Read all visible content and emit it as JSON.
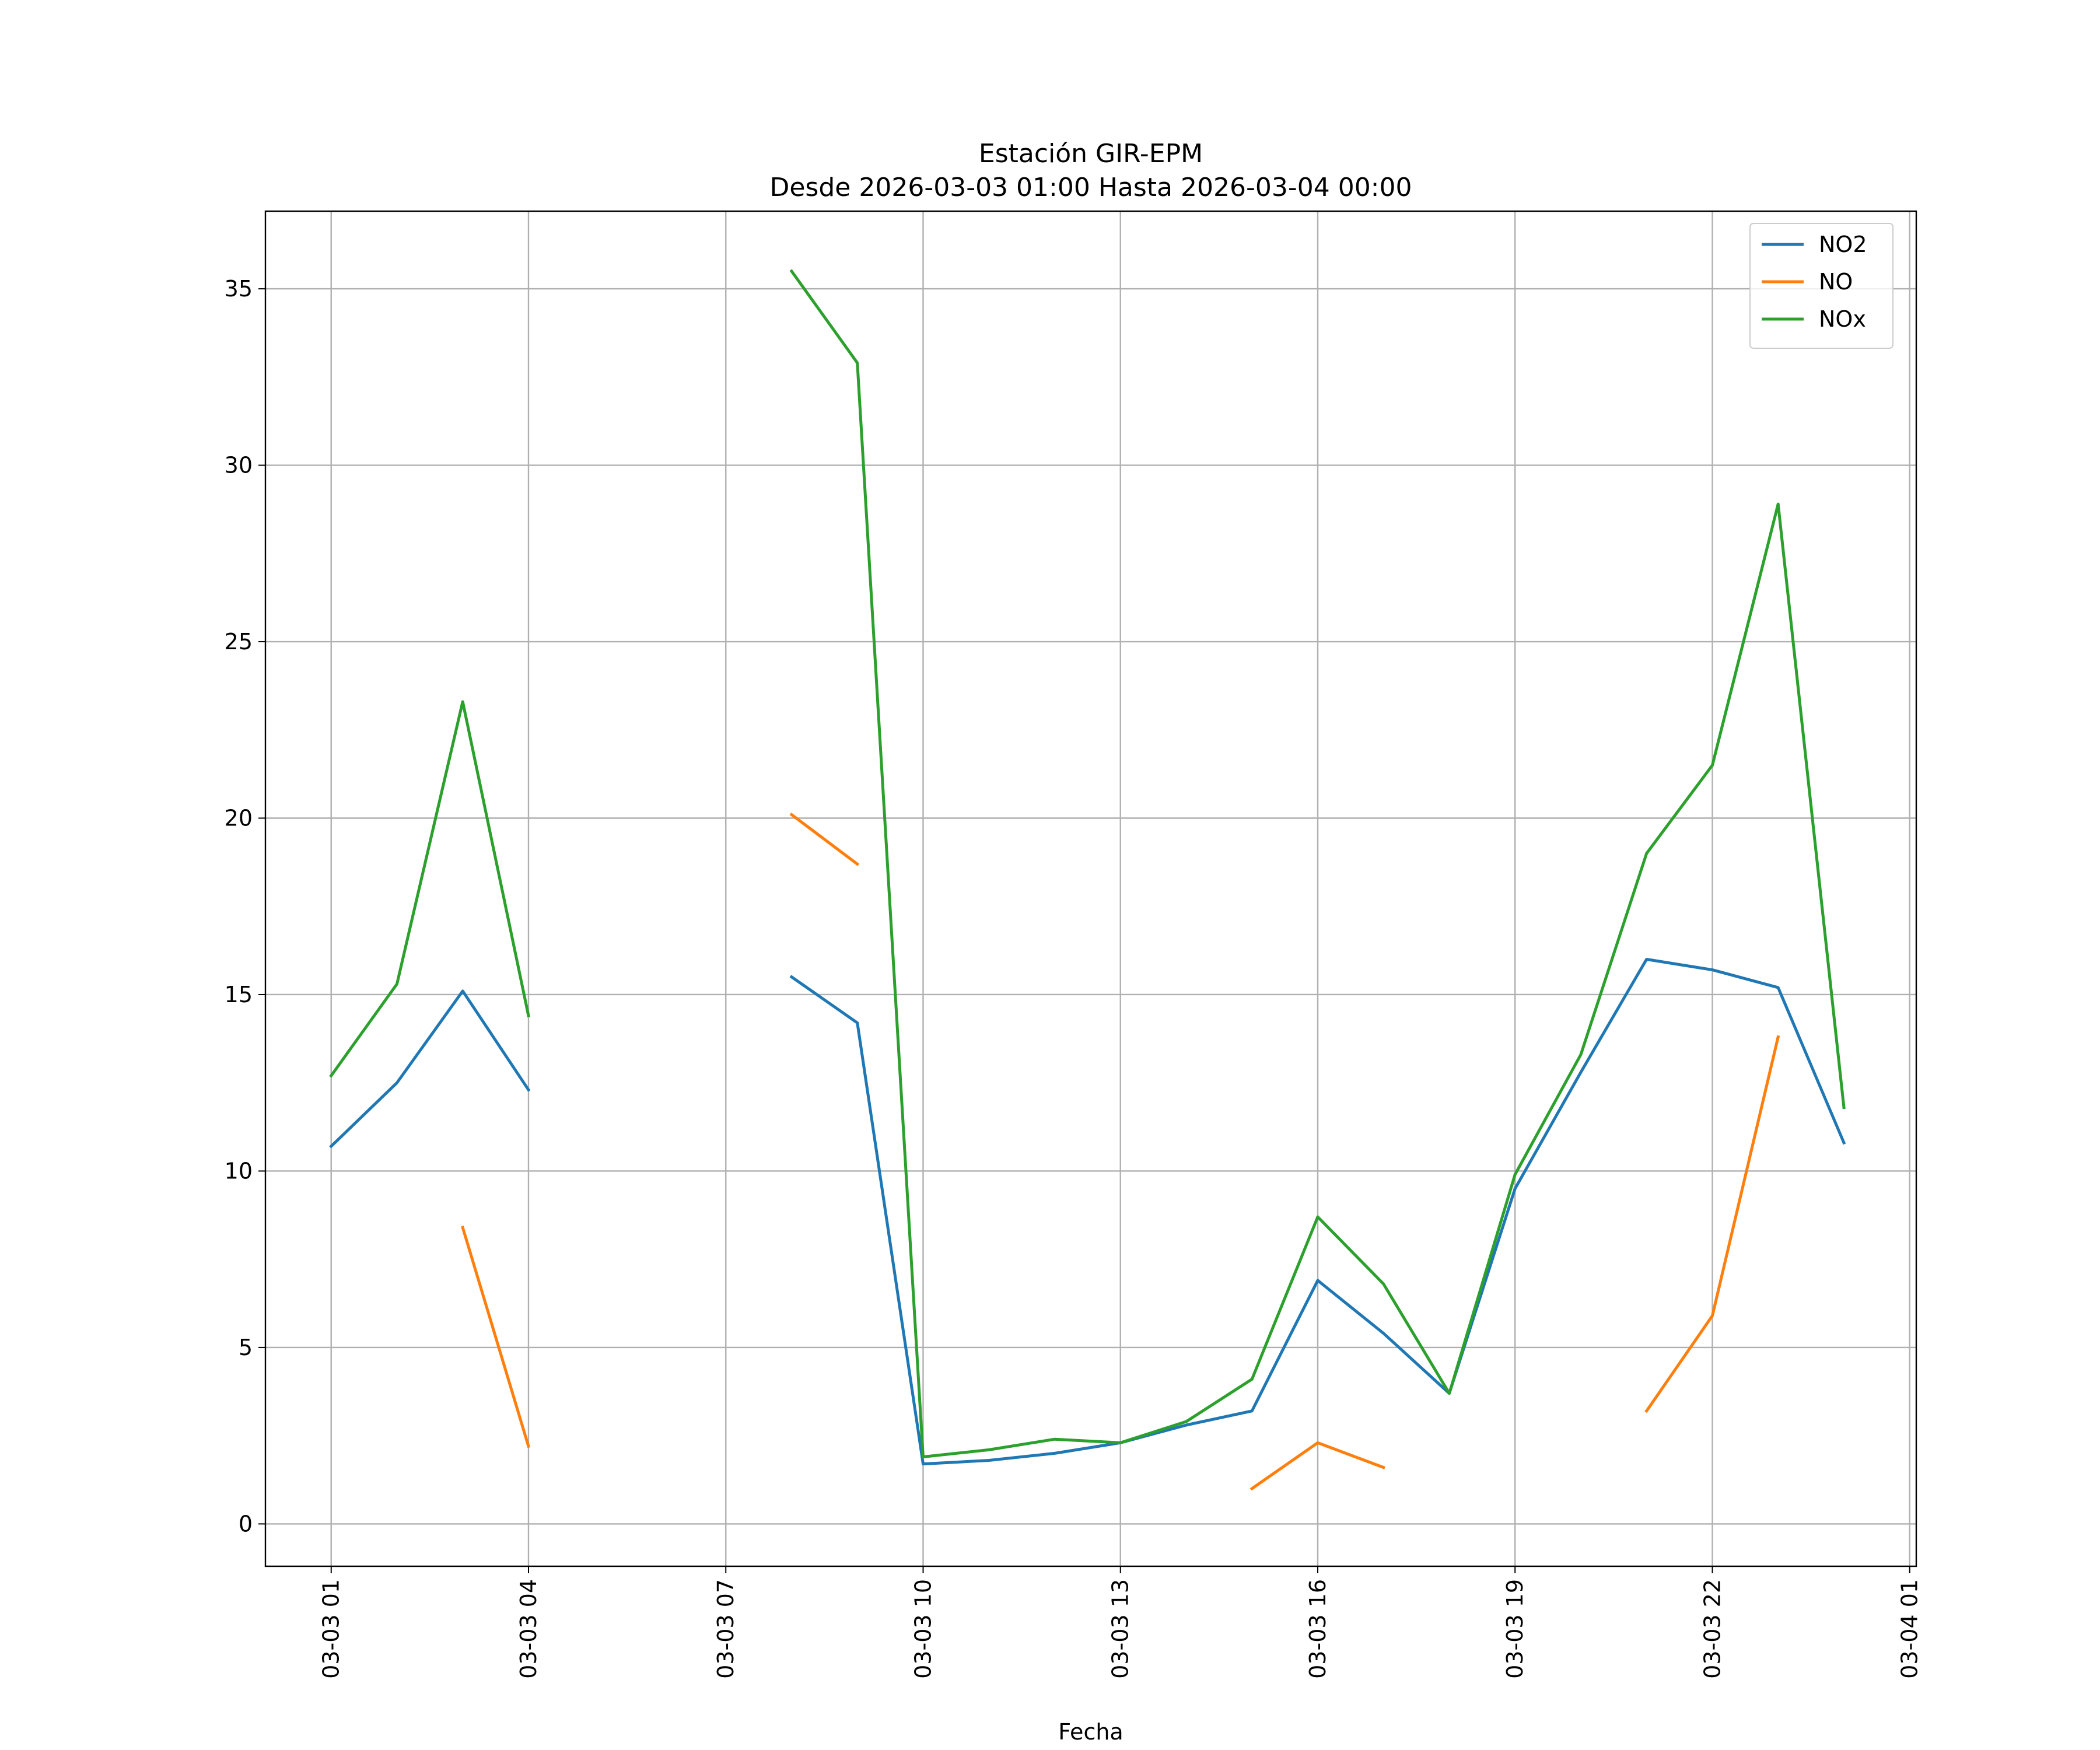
{
  "chart_data": {
    "type": "line",
    "title": "Estación GIR-EPM",
    "subtitle": "Desde 2026-03-03 01:00 Hasta 2026-03-04 00:00",
    "xlabel": "Fecha",
    "ylabel": "",
    "x": [
      "2026-03-03 01:00",
      "2026-03-03 02:00",
      "2026-03-03 03:00",
      "2026-03-03 04:00",
      "2026-03-03 05:00",
      "2026-03-03 06:00",
      "2026-03-03 07:00",
      "2026-03-03 08:00",
      "2026-03-03 09:00",
      "2026-03-03 10:00",
      "2026-03-03 11:00",
      "2026-03-03 12:00",
      "2026-03-03 13:00",
      "2026-03-03 14:00",
      "2026-03-03 15:00",
      "2026-03-03 16:00",
      "2026-03-03 17:00",
      "2026-03-03 18:00",
      "2026-03-03 19:00",
      "2026-03-03 20:00",
      "2026-03-03 21:00",
      "2026-03-03 22:00",
      "2026-03-03 23:00",
      "2026-03-04 00:00"
    ],
    "xlim": [
      "2026-03-03 00:00",
      "2026-03-04 01:06"
    ],
    "ylim": [
      -1.2,
      37.2
    ],
    "xticks": [
      "2026-03-03 01:00",
      "2026-03-03 04:00",
      "2026-03-03 07:00",
      "2026-03-03 10:00",
      "2026-03-03 13:00",
      "2026-03-03 16:00",
      "2026-03-03 19:00",
      "2026-03-03 22:00",
      "2026-03-04 01:00"
    ],
    "xtick_labels": [
      "03-03 01",
      "03-03 04",
      "03-03 07",
      "03-03 10",
      "03-03 13",
      "03-03 16",
      "03-03 19",
      "03-03 22",
      "03-04 01"
    ],
    "yticks": [
      0,
      5,
      10,
      15,
      20,
      25,
      30,
      35
    ],
    "ytick_labels": [
      "0",
      "5",
      "10",
      "15",
      "20",
      "25",
      "30",
      "35"
    ],
    "grid": true,
    "legend_position": "top-right",
    "series": [
      {
        "name": "NO2",
        "color": "#1f77b4",
        "values": [
          10.7,
          12.5,
          15.1,
          12.3,
          null,
          null,
          null,
          15.5,
          14.2,
          1.7,
          1.8,
          2.0,
          2.3,
          2.8,
          3.2,
          6.9,
          5.4,
          3.7,
          9.5,
          12.8,
          16.0,
          15.7,
          15.2,
          10.8
        ]
      },
      {
        "name": "NO",
        "color": "#ff7f0e",
        "values": [
          null,
          null,
          8.4,
          2.2,
          null,
          null,
          null,
          20.1,
          18.7,
          null,
          null,
          null,
          null,
          null,
          1.0,
          2.3,
          1.6,
          null,
          null,
          null,
          3.2,
          5.9,
          13.8,
          null
        ]
      },
      {
        "name": "NOx",
        "color": "#2ca02c",
        "values": [
          12.7,
          15.3,
          23.3,
          14.4,
          null,
          null,
          null,
          35.5,
          32.9,
          1.9,
          2.1,
          2.4,
          2.3,
          2.9,
          4.1,
          8.7,
          6.8,
          3.7,
          9.9,
          13.3,
          19.0,
          21.5,
          28.9,
          11.8
        ]
      }
    ]
  }
}
